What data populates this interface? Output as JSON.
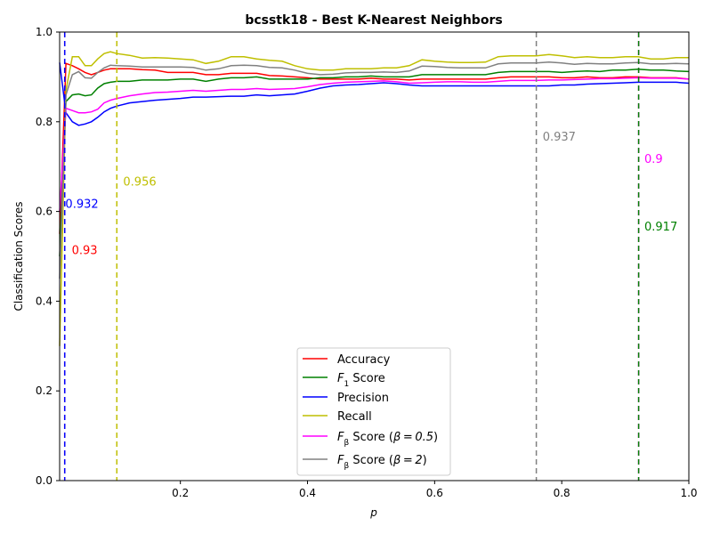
{
  "chart_data": {
    "type": "line",
    "title": "bcsstk18 - Best K-Nearest Neighbors",
    "xlabel": "p",
    "ylabel": "Classification Scores",
    "xlim": [
      0.01,
      1.0
    ],
    "ylim": [
      0.0,
      1.0
    ],
    "xticks": [
      0.2,
      0.4,
      0.6,
      0.8,
      1.0
    ],
    "xtick_labels": [
      "0.2",
      "0.4",
      "0.6",
      "0.8",
      "1.0"
    ],
    "yticks": [
      0.0,
      0.2,
      0.4,
      0.6,
      0.8,
      1.0
    ],
    "ytick_labels": [
      "0.0",
      "0.2",
      "0.4",
      "0.6",
      "0.8",
      "1.0"
    ],
    "grid": false,
    "legend_position": "bottom-center",
    "x": [
      0.01,
      0.02,
      0.03,
      0.04,
      0.05,
      0.06,
      0.07,
      0.08,
      0.09,
      0.1,
      0.12,
      0.14,
      0.16,
      0.18,
      0.2,
      0.22,
      0.24,
      0.26,
      0.28,
      0.3,
      0.32,
      0.34,
      0.36,
      0.38,
      0.4,
      0.42,
      0.44,
      0.46,
      0.48,
      0.5,
      0.52,
      0.54,
      0.56,
      0.58,
      0.6,
      0.62,
      0.64,
      0.66,
      0.68,
      0.7,
      0.72,
      0.74,
      0.76,
      0.78,
      0.8,
      0.82,
      0.84,
      0.86,
      0.88,
      0.9,
      0.92,
      0.94,
      0.96,
      0.98,
      1.0
    ],
    "series": [
      {
        "name": "Accuracy",
        "color": "#ff0000",
        "values": [
          0.55,
          0.93,
          0.925,
          0.918,
          0.91,
          0.905,
          0.91,
          0.915,
          0.918,
          0.918,
          0.918,
          0.916,
          0.915,
          0.91,
          0.91,
          0.91,
          0.905,
          0.905,
          0.908,
          0.908,
          0.908,
          0.903,
          0.902,
          0.9,
          0.898,
          0.895,
          0.895,
          0.895,
          0.895,
          0.897,
          0.895,
          0.895,
          0.893,
          0.895,
          0.895,
          0.895,
          0.895,
          0.895,
          0.895,
          0.898,
          0.9,
          0.9,
          0.9,
          0.9,
          0.898,
          0.898,
          0.9,
          0.898,
          0.898,
          0.9,
          0.9,
          0.898,
          0.898,
          0.898,
          0.895
        ]
      },
      {
        "name": "$F_1$ Score",
        "color": "#008000",
        "values": [
          0.5,
          0.845,
          0.86,
          0.862,
          0.858,
          0.86,
          0.875,
          0.885,
          0.888,
          0.89,
          0.89,
          0.893,
          0.893,
          0.893,
          0.895,
          0.895,
          0.89,
          0.895,
          0.898,
          0.898,
          0.9,
          0.895,
          0.895,
          0.895,
          0.895,
          0.898,
          0.898,
          0.9,
          0.9,
          0.902,
          0.9,
          0.9,
          0.9,
          0.905,
          0.905,
          0.905,
          0.905,
          0.905,
          0.905,
          0.91,
          0.912,
          0.912,
          0.912,
          0.912,
          0.91,
          0.912,
          0.913,
          0.912,
          0.915,
          0.915,
          0.917,
          0.915,
          0.915,
          0.913,
          0.912
        ]
      },
      {
        "name": "Precision",
        "color": "#0000ff",
        "values": [
          0.932,
          0.82,
          0.8,
          0.792,
          0.795,
          0.8,
          0.81,
          0.822,
          0.83,
          0.835,
          0.842,
          0.845,
          0.848,
          0.85,
          0.852,
          0.855,
          0.855,
          0.856,
          0.857,
          0.857,
          0.86,
          0.858,
          0.86,
          0.862,
          0.868,
          0.875,
          0.88,
          0.882,
          0.883,
          0.885,
          0.887,
          0.885,
          0.882,
          0.88,
          0.88,
          0.88,
          0.88,
          0.88,
          0.88,
          0.88,
          0.88,
          0.88,
          0.88,
          0.88,
          0.882,
          0.882,
          0.884,
          0.885,
          0.886,
          0.887,
          0.888,
          0.888,
          0.888,
          0.888,
          0.886
        ]
      },
      {
        "name": "Recall",
        "color": "#bfbf00",
        "values": [
          0.3,
          0.87,
          0.945,
          0.945,
          0.925,
          0.925,
          0.94,
          0.952,
          0.956,
          0.952,
          0.948,
          0.942,
          0.943,
          0.942,
          0.94,
          0.938,
          0.93,
          0.935,
          0.945,
          0.945,
          0.94,
          0.937,
          0.935,
          0.925,
          0.918,
          0.915,
          0.915,
          0.918,
          0.918,
          0.918,
          0.92,
          0.92,
          0.925,
          0.938,
          0.935,
          0.933,
          0.932,
          0.932,
          0.933,
          0.945,
          0.947,
          0.947,
          0.947,
          0.95,
          0.947,
          0.943,
          0.945,
          0.943,
          0.943,
          0.945,
          0.945,
          0.94,
          0.94,
          0.943,
          0.943
        ]
      },
      {
        "name": "$F_\\beta$ Score ($\\beta=0.5$)",
        "color": "#ff00ff",
        "values": [
          0.6,
          0.83,
          0.825,
          0.82,
          0.82,
          0.822,
          0.828,
          0.842,
          0.848,
          0.852,
          0.858,
          0.862,
          0.865,
          0.866,
          0.868,
          0.87,
          0.868,
          0.87,
          0.872,
          0.872,
          0.874,
          0.872,
          0.873,
          0.874,
          0.878,
          0.883,
          0.886,
          0.888,
          0.889,
          0.89,
          0.891,
          0.889,
          0.886,
          0.887,
          0.888,
          0.889,
          0.889,
          0.888,
          0.888,
          0.89,
          0.892,
          0.892,
          0.892,
          0.893,
          0.893,
          0.894,
          0.895,
          0.896,
          0.896,
          0.897,
          0.898,
          0.897,
          0.897,
          0.897,
          0.895
        ]
      },
      {
        "name": "$F_\\beta$ Score ($\\beta=2$)",
        "color": "#808080",
        "values": [
          0.45,
          0.86,
          0.905,
          0.912,
          0.898,
          0.897,
          0.91,
          0.92,
          0.926,
          0.925,
          0.924,
          0.922,
          0.922,
          0.922,
          0.922,
          0.921,
          0.915,
          0.918,
          0.925,
          0.926,
          0.925,
          0.921,
          0.92,
          0.915,
          0.908,
          0.905,
          0.906,
          0.909,
          0.91,
          0.91,
          0.911,
          0.91,
          0.913,
          0.924,
          0.923,
          0.921,
          0.92,
          0.92,
          0.92,
          0.929,
          0.931,
          0.931,
          0.931,
          0.933,
          0.931,
          0.928,
          0.93,
          0.929,
          0.929,
          0.931,
          0.932,
          0.929,
          0.929,
          0.93,
          0.929
        ]
      }
    ],
    "vlines": [
      {
        "x": 0.018,
        "color": "#ff0000",
        "label": "0.93",
        "label_x": 0.029,
        "label_y": 0.505
      },
      {
        "x": 0.018,
        "color": "#0000ff",
        "label": "0.932",
        "label_x": 0.019,
        "label_y": 0.608
      },
      {
        "x": 0.1,
        "color": "#bfbf00",
        "label": "0.956",
        "label_x": 0.11,
        "label_y": 0.658
      },
      {
        "x": 0.76,
        "color": "#808080",
        "label": "0.937",
        "label_x": 0.77,
        "label_y": 0.758
      },
      {
        "x": 0.921,
        "color": "#ff00ff",
        "label": "0.9",
        "label_x": 0.93,
        "label_y": 0.708
      },
      {
        "x": 0.921,
        "color": "#008000",
        "label": "0.917",
        "label_x": 0.93,
        "label_y": 0.558
      }
    ]
  }
}
